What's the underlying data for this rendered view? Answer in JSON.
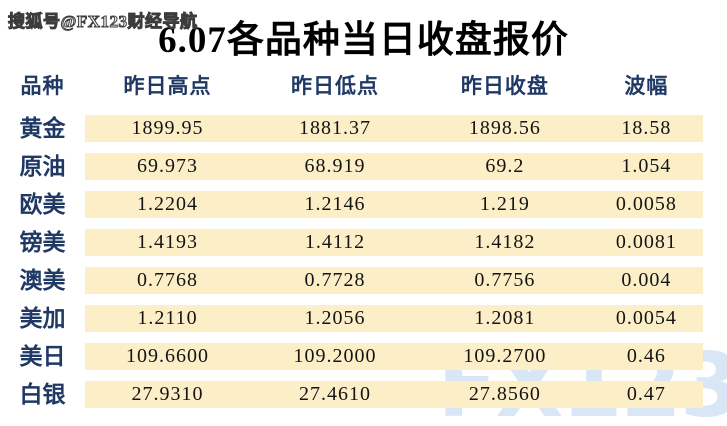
{
  "title": "6.07各品种当日收盘报价",
  "watermarks": {
    "top": "搜狐号@FX123财经导航",
    "bottom_logo": "FX123"
  },
  "colors": {
    "header_text": "#1f3864",
    "row_label_text": "#1f3864",
    "band_background": "#fcefc8",
    "title_text": "#000000",
    "logo_watermark": "#d9e6f5"
  },
  "chart_data": {
    "type": "table",
    "title": "6.07各品种当日收盘报价",
    "columns": [
      "品种",
      "昨日高点",
      "昨日低点",
      "昨日收盘",
      "波幅"
    ],
    "rows": [
      {
        "label": "黄金",
        "values": [
          "1899.95",
          "1881.37",
          "1898.56",
          "18.58"
        ]
      },
      {
        "label": "原油",
        "values": [
          "69.973",
          "68.919",
          "69.2",
          "1.054"
        ]
      },
      {
        "label": "欧美",
        "values": [
          "1.2204",
          "1.2146",
          "1.219",
          "0.0058"
        ]
      },
      {
        "label": "镑美",
        "values": [
          "1.4193",
          "1.4112",
          "1.4182",
          "0.0081"
        ]
      },
      {
        "label": "澳美",
        "values": [
          "0.7768",
          "0.7728",
          "0.7756",
          "0.004"
        ]
      },
      {
        "label": "美加",
        "values": [
          "1.2110",
          "1.2056",
          "1.2081",
          "0.0054"
        ]
      },
      {
        "label": "美日",
        "values": [
          "109.6600",
          "109.2000",
          "109.2700",
          "0.46"
        ]
      },
      {
        "label": "白银",
        "values": [
          "27.9310",
          "27.4610",
          "27.8560",
          "0.47"
        ]
      }
    ]
  }
}
